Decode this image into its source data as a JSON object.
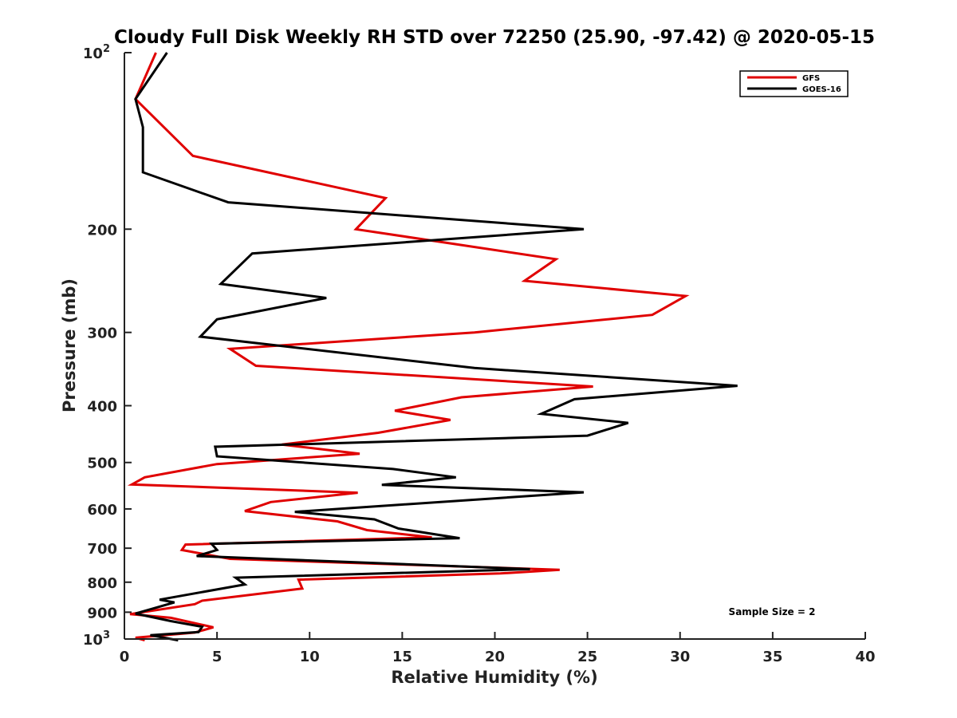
{
  "chart_data": {
    "type": "line",
    "title": "Cloudy Full Disk Weekly RH STD over 72250 (25.90, -97.42) @ 2020-05-15",
    "xlabel": "Relative Humidity (%)",
    "ylabel": "Pressure (mb)",
    "xlim": [
      0,
      40
    ],
    "ylim": [
      100,
      1000
    ],
    "yscale": "log",
    "yreversed": true,
    "grid": false,
    "legend_position": "top-right",
    "x_ticks": [
      0,
      5,
      10,
      15,
      20,
      25,
      30,
      35,
      40
    ],
    "y_ticks": [
      {
        "value": 100,
        "label": "10",
        "sup": "2"
      },
      {
        "value": 200,
        "label": "200"
      },
      {
        "value": 300,
        "label": "300"
      },
      {
        "value": 400,
        "label": "400"
      },
      {
        "value": 500,
        "label": "500"
      },
      {
        "value": 600,
        "label": "600"
      },
      {
        "value": 700,
        "label": "700"
      },
      {
        "value": 800,
        "label": "800"
      },
      {
        "value": 900,
        "label": "900"
      },
      {
        "value": 1000,
        "label": "10",
        "sup": "3"
      }
    ],
    "series": [
      {
        "name": "GFS",
        "color": "#e00000",
        "points": [
          [
            1.7,
            100
          ],
          [
            0.6,
            120
          ],
          [
            3.7,
            150
          ],
          [
            14.1,
            177
          ],
          [
            12.5,
            200
          ],
          [
            23.3,
            225
          ],
          [
            21.6,
            245
          ],
          [
            30.3,
            260
          ],
          [
            28.5,
            280
          ],
          [
            18.9,
            300
          ],
          [
            5.7,
            320
          ],
          [
            7.1,
            342
          ],
          [
            25.3,
            371
          ],
          [
            18.2,
            387
          ],
          [
            14.6,
            408
          ],
          [
            17.6,
            423
          ],
          [
            13.7,
            445
          ],
          [
            8.5,
            466
          ],
          [
            12.7,
            483
          ],
          [
            5.0,
            503
          ],
          [
            1.1,
            530
          ],
          [
            0.4,
            545
          ],
          [
            12.6,
            563
          ],
          [
            7.9,
            584
          ],
          [
            6.5,
            605
          ],
          [
            11.5,
            630
          ],
          [
            13.1,
            652
          ],
          [
            16.6,
            671
          ],
          [
            3.3,
            690
          ],
          [
            3.1,
            705
          ],
          [
            5.7,
            730
          ],
          [
            23.5,
            762
          ],
          [
            20.3,
            773
          ],
          [
            9.4,
            792
          ],
          [
            9.6,
            820
          ],
          [
            4.2,
            860
          ],
          [
            3.8,
            872
          ],
          [
            0.3,
            907
          ],
          [
            2.5,
            920
          ],
          [
            4.8,
            955
          ],
          [
            3.8,
            975
          ],
          [
            0.6,
            995
          ],
          [
            1.1,
            1005
          ]
        ]
      },
      {
        "name": "GOES-16",
        "color": "#000000",
        "points": [
          [
            2.3,
            100
          ],
          [
            0.6,
            120
          ],
          [
            1.0,
            134
          ],
          [
            1.0,
            160
          ],
          [
            5.6,
            180
          ],
          [
            24.8,
            200
          ],
          [
            6.9,
            220
          ],
          [
            5.2,
            248
          ],
          [
            10.9,
            262
          ],
          [
            5.0,
            285
          ],
          [
            4.1,
            305
          ],
          [
            18.9,
            345
          ],
          [
            33.1,
            370
          ],
          [
            24.3,
            390
          ],
          [
            22.5,
            413
          ],
          [
            27.2,
            428
          ],
          [
            25.0,
            450
          ],
          [
            4.9,
            470
          ],
          [
            5.0,
            488
          ],
          [
            14.5,
            513
          ],
          [
            17.9,
            530
          ],
          [
            13.9,
            546
          ],
          [
            24.8,
            562
          ],
          [
            14.9,
            590
          ],
          [
            9.2,
            607
          ],
          [
            13.5,
            625
          ],
          [
            14.8,
            648
          ],
          [
            18.1,
            673
          ],
          [
            4.7,
            688
          ],
          [
            5.0,
            705
          ],
          [
            3.9,
            722
          ],
          [
            21.9,
            760
          ],
          [
            6.0,
            786
          ],
          [
            6.5,
            807
          ],
          [
            1.9,
            857
          ],
          [
            2.7,
            866
          ],
          [
            0.6,
            905
          ],
          [
            2.5,
            932
          ],
          [
            4.2,
            953
          ],
          [
            4.0,
            973
          ],
          [
            1.4,
            985
          ],
          [
            2.9,
            1005
          ]
        ]
      }
    ],
    "annotations": [
      {
        "text": "Sample Size = 2",
        "x": 36,
        "y": 905
      }
    ]
  }
}
